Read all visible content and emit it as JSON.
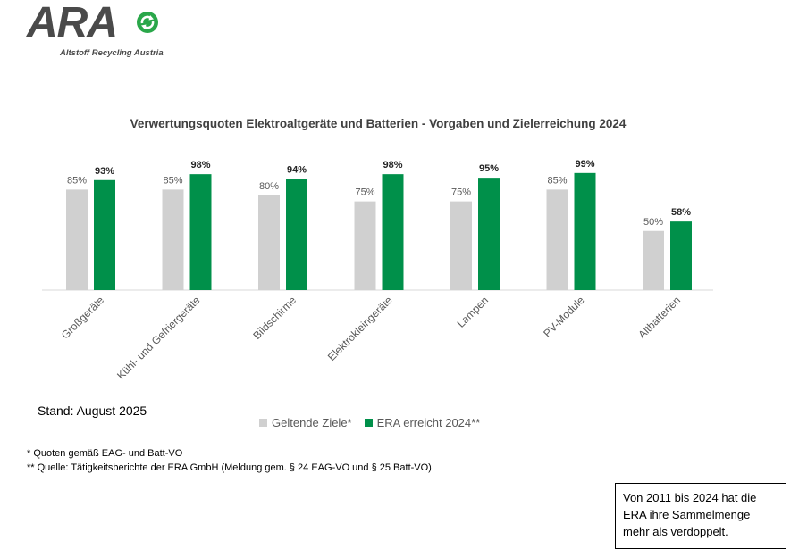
{
  "logo": {
    "text": "ARA",
    "subtitle": "Altstoff Recycling Austria"
  },
  "chart_data": {
    "type": "bar",
    "title": "Verwertungsquoten Elektroaltgeräte und Batterien - Vorgaben und Zielerreichung 2024",
    "categories": [
      "Großgeräte",
      "Kühl- und Gefriergeräte",
      "Bildschirme",
      "Elektrokleingeräte",
      "Lampen",
      "PV-Module",
      "Altbatterien"
    ],
    "series": [
      {
        "name": "Geltende Ziele*",
        "values": [
          85,
          85,
          80,
          75,
          75,
          85,
          50
        ],
        "labels": [
          "85%",
          "85%",
          "80%",
          "75%",
          "75%",
          "85%",
          "50%"
        ],
        "color": "#d0d0d0"
      },
      {
        "name": "ERA erreicht 2024**",
        "values": [
          93,
          98,
          94,
          98,
          95,
          99,
          58
        ],
        "labels": [
          "93%",
          "98%",
          "94%",
          "98%",
          "95%",
          "99%",
          "58%"
        ],
        "color": "#00904a"
      }
    ],
    "ylim": [
      0,
      100
    ],
    "grid": false,
    "legend_position": "bottom"
  },
  "stand": "Stand: August 2025",
  "footnotes": [
    "* Quoten gemäß EAG- und Batt-VO",
    "** Quelle: Tätigkeitsberichte der ERA GmbH (Meldung gem. § 24 EAG-VO und § 25 Batt-VO)"
  ],
  "note": "Von 2011 bis 2024 hat die ERA ihre Sammelmenge mehr als verdoppelt.",
  "colors": {
    "logo_gray": "#4a4a4a",
    "logo_green": "#2aa74a"
  }
}
